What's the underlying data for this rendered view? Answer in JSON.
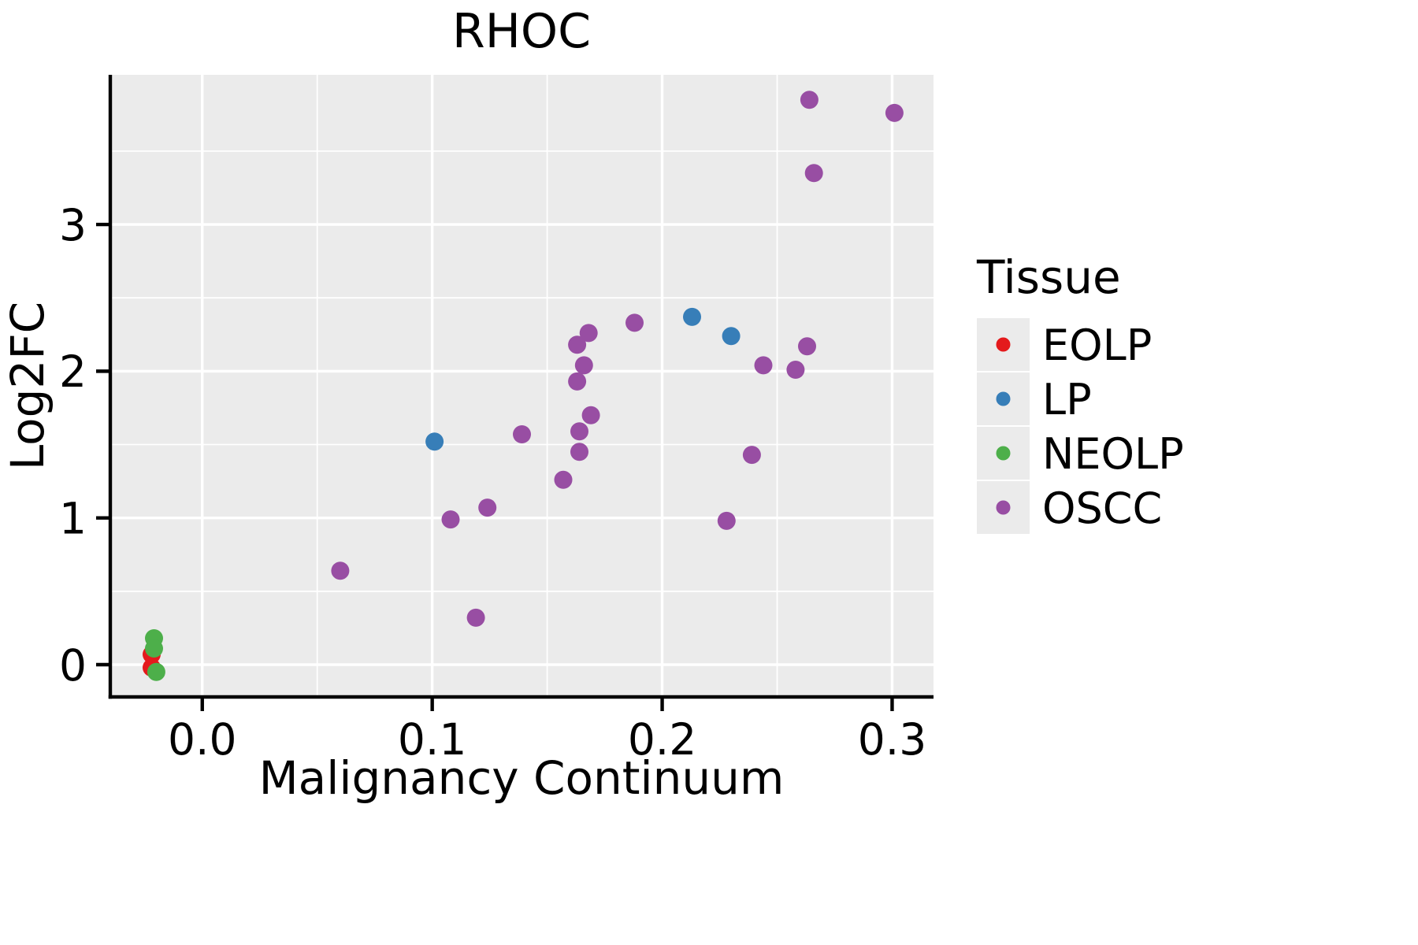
{
  "title": "RHOC",
  "chart_data": {
    "type": "scatter",
    "title": "RHOC",
    "xlabel": "Malignancy Continuum",
    "ylabel": "Log2FC",
    "legend_title": "Tissue",
    "legend_position": "right",
    "grid": true,
    "panel_bg": "#EBEBEB",
    "grid_color": "#FFFFFF",
    "axis_color": "#000000",
    "xlim": [
      -0.04,
      0.318
    ],
    "ylim": [
      -0.22,
      4.02
    ],
    "xticks": [
      0.0,
      0.1,
      0.2,
      0.3
    ],
    "xtick_labels": [
      "0.0",
      "0.1",
      "0.2",
      "0.3"
    ],
    "yticks": [
      0,
      1,
      2,
      3
    ],
    "ytick_labels": [
      "0",
      "1",
      "2",
      "3"
    ],
    "xticks_minor": [
      0.05,
      0.15,
      0.25
    ],
    "yticks_minor": [
      0.5,
      1.5,
      2.5,
      3.5
    ],
    "series": [
      {
        "name": "EOLP",
        "color": "#E41A1C",
        "points": [
          [
            -0.022,
            0.07
          ],
          [
            -0.022,
            -0.02
          ]
        ]
      },
      {
        "name": "LP",
        "color": "#377EB8",
        "points": [
          [
            0.101,
            1.52
          ],
          [
            0.213,
            2.37
          ],
          [
            0.23,
            2.24
          ]
        ]
      },
      {
        "name": "NEOLP",
        "color": "#4DAF4A",
        "points": [
          [
            -0.021,
            0.18
          ],
          [
            -0.021,
            0.11
          ],
          [
            -0.02,
            -0.05
          ]
        ]
      },
      {
        "name": "OSCC",
        "color": "#984EA3",
        "points": [
          [
            0.264,
            3.85
          ],
          [
            0.301,
            3.76
          ],
          [
            0.266,
            3.35
          ],
          [
            0.188,
            2.33
          ],
          [
            0.168,
            2.26
          ],
          [
            0.163,
            2.18
          ],
          [
            0.263,
            2.17
          ],
          [
            0.166,
            2.04
          ],
          [
            0.244,
            2.04
          ],
          [
            0.258,
            2.01
          ],
          [
            0.163,
            1.93
          ],
          [
            0.169,
            1.7
          ],
          [
            0.164,
            1.59
          ],
          [
            0.139,
            1.57
          ],
          [
            0.164,
            1.45
          ],
          [
            0.239,
            1.43
          ],
          [
            0.157,
            1.26
          ],
          [
            0.124,
            1.07
          ],
          [
            0.108,
            0.99
          ],
          [
            0.228,
            0.98
          ],
          [
            0.06,
            0.64
          ],
          [
            0.119,
            0.32
          ]
        ]
      }
    ]
  }
}
